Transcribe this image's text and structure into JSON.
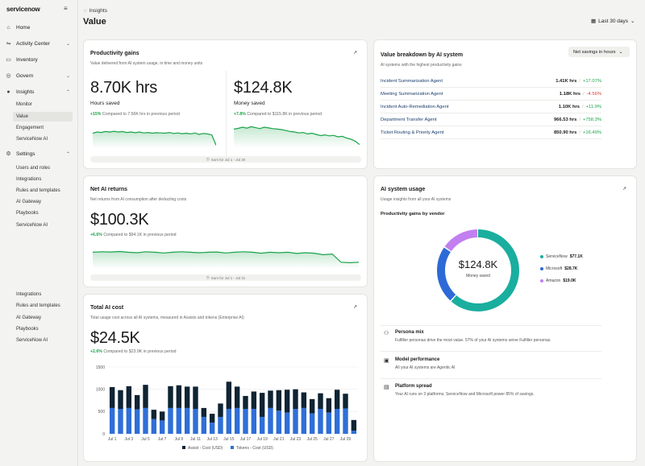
{
  "sidebar": {
    "logo": "servicenow",
    "items": [
      {
        "label": "Home",
        "icon": "home-icon",
        "glyph": "⌂"
      },
      {
        "label": "Activity Center",
        "icon": "activity-icon",
        "glyph": "⇋"
      },
      {
        "label": "Inventory",
        "icon": "inventory-icon",
        "glyph": "▭"
      },
      {
        "label": "Govern",
        "icon": "govern-icon",
        "glyph": "◎"
      },
      {
        "label": "Insights",
        "icon": "lightbulb-icon",
        "glyph": "●"
      },
      {
        "label": "Settings",
        "icon": "gear-icon",
        "glyph": "⚙"
      }
    ],
    "insights_sub": [
      "Monitor",
      "Value",
      "Engagement",
      "ServiceNow AI"
    ],
    "settings_sub": [
      "Users and roles",
      "Integrations",
      "Rules and templates",
      "AI Gateway",
      "Playbooks",
      "ServiceNow AI"
    ],
    "bottom_sub": [
      "Integrations",
      "Rules and templates",
      "AI Gateway",
      "Playbooks",
      "ServiceNow AI"
    ]
  },
  "header": {
    "crumb": "Insights",
    "title": "Value",
    "date_range": "Last 30 days"
  },
  "productivity": {
    "title": "Productivity gains",
    "subtitle": "Value delivered from AI system usage, in time and money units",
    "hours_value": "8.70K hrs",
    "hours_label": "Hours saved",
    "hours_delta": "+15%",
    "hours_compare": "Compared to 7.56K hrs in previous period",
    "money_value": "$124.8K",
    "money_label": "Money saved",
    "money_delta": "+7.8%",
    "money_compare": "Compared to $115.8K in previous period",
    "range": "Sum for Jul 1 - Jul 30",
    "hours_trend": [
      0.55,
      0.6,
      0.58,
      0.62,
      0.6,
      0.63,
      0.6,
      0.62,
      0.58,
      0.6,
      0.57,
      0.6,
      0.56,
      0.58,
      0.55,
      0.57,
      0.56,
      0.55,
      0.58,
      0.54,
      0.56,
      0.53,
      0.55,
      0.52,
      0.56,
      0.5,
      0.54,
      0.52,
      0.48,
      0.05
    ],
    "money_trend": [
      0.72,
      0.75,
      0.8,
      0.76,
      0.82,
      0.78,
      0.74,
      0.8,
      0.77,
      0.74,
      0.72,
      0.7,
      0.66,
      0.62,
      0.6,
      0.56,
      0.58,
      0.52,
      0.55,
      0.5,
      0.45,
      0.48,
      0.44,
      0.46,
      0.4,
      0.42,
      0.35,
      0.3,
      0.22,
      0.08
    ]
  },
  "breakdown": {
    "title": "Value breakdown by AI system",
    "subtitle": "AI systems with the highest productivity gains",
    "dropdown": "Net savings in hours",
    "rows": [
      {
        "name": "Incident Summarization Agent",
        "value": "1.41K hrs",
        "change": "+17.07%",
        "dir": "pos"
      },
      {
        "name": "Meeting Summarization Agent",
        "value": "1.18K hrs",
        "change": "-4.56%",
        "dir": "neg"
      },
      {
        "name": "Incident Auto-Remediation Agent",
        "value": "1.10K hrs",
        "change": "+11.9%",
        "dir": "pos"
      },
      {
        "name": "Department Transfer Agent",
        "value": "966.53 hrs",
        "change": "+758.3%",
        "dir": "pos"
      },
      {
        "name": "Ticket Routing & Priority Agent",
        "value": "850.90 hrs",
        "change": "+16.49%",
        "dir": "pos"
      }
    ]
  },
  "net_returns": {
    "title": "Net AI returns",
    "subtitle": "Net returns from AI consumption after deducting costs",
    "value": "$100.3K",
    "delta": "+6.6%",
    "compare": "Compared to $94.1K in previous period",
    "range": "Sum for Jul 1 - Jul 31",
    "trend": [
      0.6,
      0.62,
      0.61,
      0.63,
      0.6,
      0.58,
      0.62,
      0.6,
      0.57,
      0.6,
      0.62,
      0.6,
      0.58,
      0.6,
      0.61,
      0.57,
      0.6,
      0.62,
      0.6,
      0.56,
      0.6,
      0.58,
      0.6,
      0.55,
      0.58,
      0.56,
      0.5,
      0.53,
      0.2,
      0.18,
      0.2
    ]
  },
  "total_cost": {
    "title": "Total AI cost",
    "subtitle": "Total usage cost across all AI systems, measured in Assists and tokens (Enterprise AI)",
    "value": "$24.5K",
    "delta": "+2.6%",
    "compare": "Compared to $23.9K in previous period"
  },
  "chart_data": {
    "type": "bar",
    "stacked": true,
    "ylim": [
      0,
      1500
    ],
    "yticks": [
      "1500",
      "1000",
      "500",
      "0"
    ],
    "categories": [
      "Jul 1",
      "Jul 2",
      "Jul 3",
      "Jul 4",
      "Jul 5",
      "Jul 6",
      "Jul 7",
      "Jul 8",
      "Jul 9",
      "Jul 10",
      "Jul 11",
      "Jul 12",
      "Jul 13",
      "Jul 14",
      "Jul 15",
      "Jul 16",
      "Jul 17",
      "Jul 18",
      "Jul 19",
      "Jul 20",
      "Jul 21",
      "Jul 22",
      "Jul 23",
      "Jul 24",
      "Jul 25",
      "Jul 26",
      "Jul 27",
      "Jul 28",
      "Jul 29",
      "Jul 30"
    ],
    "xtick_labels": [
      "Jul 1",
      "Jul 3",
      "Jul 5",
      "Jul 7",
      "Jul 9",
      "Jul 11",
      "Jul 13",
      "Jul 15",
      "Jul 17",
      "Jul 19",
      "Jul 21",
      "Jul 23",
      "Jul 25",
      "Jul 27",
      "Jul 29"
    ],
    "series": [
      {
        "name": "Tokens - Cost (USD)",
        "color": "#2f6fd8",
        "values": [
          580,
          560,
          580,
          550,
          580,
          330,
          300,
          580,
          580,
          580,
          560,
          380,
          250,
          380,
          560,
          580,
          560,
          560,
          380,
          580,
          520,
          480,
          560,
          580,
          460,
          560,
          480,
          560,
          570,
          70
        ]
      },
      {
        "name": "Assist - Cost (USD)",
        "color": "#0f2433",
        "values": [
          470,
          420,
          490,
          320,
          520,
          210,
          200,
          490,
          510,
          480,
          500,
          200,
          200,
          300,
          610,
          480,
          290,
          390,
          540,
          390,
          460,
          510,
          440,
          350,
          320,
          350,
          320,
          430,
          330,
          240
        ]
      }
    ],
    "legend_position": "bottom"
  },
  "usage": {
    "title": "AI system usage",
    "subtitle": "Usage insights from all your AI systems",
    "section": "Productivity gains by vendor",
    "donut_value": "$124.8K",
    "donut_label": "Money saved",
    "vendors": [
      {
        "name": "ServiceNow",
        "value": "$77.1K",
        "amount": 77.1,
        "color": "#1aae9f"
      },
      {
        "name": "Microsoft",
        "value": "$28.7K",
        "amount": 28.7,
        "color": "#2d6ad6"
      },
      {
        "name": "Amazon",
        "value": "$19.0K",
        "amount": 19.0,
        "color": "#c27ff0"
      }
    ],
    "insights": [
      {
        "title": "Persona mix",
        "text": "Fulfiller personas drive the most value. 57% of your AI systems serve Fulfiller personas.",
        "icon": "people-icon",
        "glyph": "⚇"
      },
      {
        "title": "Model performance",
        "text": "All your AI systems are Agentic AI",
        "icon": "cpu-icon",
        "glyph": "▣"
      },
      {
        "title": "Platform spread",
        "text": "Your AI runs on 3 platforms; ServiceNow and Microsoft power 85% of savings.",
        "icon": "platform-icon",
        "glyph": "▤"
      }
    ]
  }
}
